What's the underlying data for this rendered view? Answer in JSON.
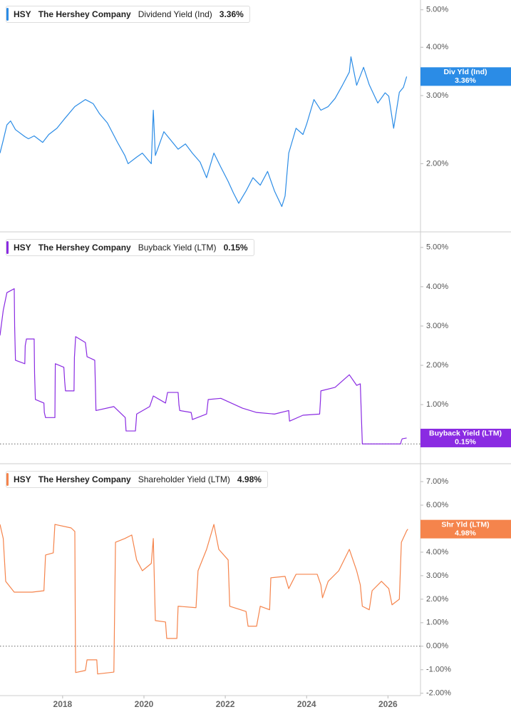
{
  "chart_data": [
    {
      "type": "line",
      "ticker": "HSY",
      "company": "The Hershey Company",
      "log_scale": true,
      "ylim": [
        1.35,
        5.3
      ],
      "yticks": [
        {
          "value": 2,
          "label": "2.00%"
        },
        {
          "value": 3,
          "label": "3.00%"
        },
        {
          "value": 4,
          "label": "4.00%"
        },
        {
          "value": 5,
          "label": "5.00%"
        }
      ],
      "xlim": [
        2016.46,
        2026.8
      ],
      "series": [
        {
          "name": "Dividend Yield (Ind)",
          "color": "#2b8ce6",
          "x": [
            2016.46,
            2016.54,
            2016.63,
            2016.72,
            2016.84,
            2017.07,
            2017.16,
            2017.3,
            2017.51,
            2017.66,
            2017.86,
            2018.03,
            2018.3,
            2018.56,
            2018.75,
            2018.91,
            2019.1,
            2019.35,
            2019.53,
            2019.61,
            2019.82,
            2019.96,
            2020.18,
            2020.23,
            2020.28,
            2020.49,
            2020.66,
            2020.84,
            2021.02,
            2021.19,
            2021.38,
            2021.54,
            2021.72,
            2021.89,
            2022.07,
            2022.2,
            2022.33,
            2022.51,
            2022.68,
            2022.86,
            2023.04,
            2023.21,
            2023.39,
            2023.47,
            2023.56,
            2023.74,
            2023.91,
            2024.0,
            2024.18,
            2024.35,
            2024.53,
            2024.7,
            2024.88,
            2025.05,
            2025.09,
            2025.23,
            2025.4,
            2025.54,
            2025.75,
            2025.93,
            2026.02,
            2026.14,
            2026.28,
            2026.38,
            2026.46
          ],
          "values": [
            2.13,
            2.3,
            2.52,
            2.58,
            2.45,
            2.35,
            2.32,
            2.36,
            2.27,
            2.38,
            2.47,
            2.6,
            2.81,
            2.93,
            2.86,
            2.69,
            2.55,
            2.27,
            2.1,
            2.0,
            2.08,
            2.13,
            2.0,
            2.75,
            2.1,
            2.42,
            2.3,
            2.18,
            2.25,
            2.13,
            2.02,
            1.84,
            2.13,
            1.96,
            1.8,
            1.68,
            1.58,
            1.7,
            1.84,
            1.76,
            1.91,
            1.7,
            1.55,
            1.65,
            2.13,
            2.47,
            2.38,
            2.53,
            2.93,
            2.75,
            2.81,
            2.95,
            3.19,
            3.45,
            3.78,
            3.19,
            3.55,
            3.2,
            2.87,
            3.05,
            2.99,
            2.47,
            3.06,
            3.15,
            3.36
          ]
        }
      ],
      "badge": {
        "label": "Div Yld (Ind)",
        "value": 3.36,
        "value_label": "3.36%"
      }
    },
    {
      "type": "line",
      "ticker": "HSY",
      "company": "The Hershey Company",
      "log_scale": false,
      "ylim": [
        -0.45,
        5.36
      ],
      "yticks": [
        {
          "value": 1,
          "label": "1.00%"
        },
        {
          "value": 2,
          "label": "2.00%"
        },
        {
          "value": 3,
          "label": "3.00%"
        },
        {
          "value": 4,
          "label": "4.00%"
        },
        {
          "value": 5,
          "label": "5.00%"
        }
      ],
      "reference_line": 0,
      "xlim": [
        2016.46,
        2026.8
      ],
      "series": [
        {
          "name": "Buyback Yield (LTM)",
          "color": "#8a2be2",
          "x": [
            2016.46,
            2016.54,
            2016.63,
            2016.81,
            2016.82,
            2016.84,
            2017.07,
            2017.08,
            2017.11,
            2017.3,
            2017.31,
            2017.33,
            2017.54,
            2017.55,
            2017.58,
            2017.81,
            2017.82,
            2018.03,
            2018.05,
            2018.07,
            2018.28,
            2018.29,
            2018.32,
            2018.56,
            2018.6,
            2018.79,
            2018.81,
            2018.82,
            2019.26,
            2019.54,
            2019.55,
            2019.56,
            2019.79,
            2019.81,
            2019.82,
            2020.14,
            2020.23,
            2020.53,
            2020.58,
            2020.84,
            2020.86,
            2020.88,
            2021.16,
            2021.18,
            2021.19,
            2021.54,
            2021.58,
            2021.89,
            2022.42,
            2022.77,
            2023.21,
            2023.56,
            2023.57,
            2023.58,
            2023.91,
            2024.32,
            2024.34,
            2024.35,
            2024.7,
            2025.05,
            2025.23,
            2025.32,
            2025.35,
            2025.37,
            2025.93,
            2026.31,
            2026.33,
            2026.35,
            2026.46
          ],
          "values": [
            2.76,
            3.4,
            3.85,
            3.95,
            3.0,
            2.13,
            2.04,
            2.5,
            2.67,
            2.67,
            1.8,
            1.13,
            1.04,
            0.8,
            0.67,
            0.67,
            2.04,
            1.95,
            1.6,
            1.35,
            1.35,
            2.2,
            2.73,
            2.58,
            2.22,
            2.13,
            1.3,
            0.85,
            0.95,
            0.67,
            0.5,
            0.33,
            0.33,
            0.6,
            0.76,
            0.95,
            1.22,
            1.04,
            1.31,
            1.31,
            1.0,
            0.85,
            0.8,
            0.7,
            0.62,
            0.76,
            1.13,
            1.16,
            0.91,
            0.8,
            0.76,
            0.85,
            0.7,
            0.58,
            0.73,
            0.76,
            1.1,
            1.35,
            1.44,
            1.76,
            1.49,
            1.53,
            0.6,
            0.0,
            0.0,
            0.0,
            0.08,
            0.13,
            0.15
          ]
        }
      ],
      "badge": {
        "label": "Buyback Yield (LTM)",
        "value": 0.15,
        "value_label": "0.15%"
      }
    },
    {
      "type": "line",
      "ticker": "HSY",
      "company": "The Hershey Company",
      "log_scale": false,
      "ylim": [
        -2.1,
        7.7
      ],
      "yticks": [
        {
          "value": -2,
          "label": "-2.00%"
        },
        {
          "value": -1,
          "label": "-1.00%"
        },
        {
          "value": 0,
          "label": "0.00%"
        },
        {
          "value": 1,
          "label": "1.00%"
        },
        {
          "value": 2,
          "label": "2.00%"
        },
        {
          "value": 3,
          "label": "3.00%"
        },
        {
          "value": 4,
          "label": "4.00%"
        },
        {
          "value": 5,
          "label": "5.00%"
        },
        {
          "value": 6,
          "label": "6.00%"
        },
        {
          "value": 7,
          "label": "7.00%"
        }
      ],
      "reference_line": 0,
      "xlim": [
        2016.46,
        2026.8
      ],
      "xticks": [
        2018,
        2020,
        2022,
        2024,
        2026
      ],
      "series": [
        {
          "name": "Shareholder Yield (LTM)",
          "color": "#f5844c",
          "x": [
            2016.46,
            2016.54,
            2016.6,
            2016.81,
            2017.25,
            2017.54,
            2017.58,
            2017.77,
            2017.81,
            2018.21,
            2018.3,
            2018.31,
            2018.32,
            2018.56,
            2018.6,
            2018.84,
            2018.86,
            2019.26,
            2019.3,
            2019.53,
            2019.7,
            2019.82,
            2019.96,
            2020.18,
            2020.23,
            2020.28,
            2020.53,
            2020.56,
            2020.81,
            2020.84,
            2021.28,
            2021.33,
            2021.54,
            2021.72,
            2021.84,
            2022.07,
            2022.11,
            2022.51,
            2022.56,
            2022.77,
            2022.86,
            2023.09,
            2023.12,
            2023.47,
            2023.56,
            2023.74,
            2024.26,
            2024.35,
            2024.39,
            2024.53,
            2024.79,
            2025.05,
            2025.23,
            2025.32,
            2025.37,
            2025.54,
            2025.61,
            2025.84,
            2026.02,
            2026.1,
            2026.28,
            2026.33,
            2026.46,
            2026.49
          ],
          "values": [
            5.18,
            4.58,
            2.76,
            2.3,
            2.3,
            2.36,
            3.88,
            3.97,
            5.18,
            5.03,
            4.88,
            1.5,
            -1.12,
            -1.03,
            -0.58,
            -0.58,
            -1.18,
            -1.1,
            4.42,
            4.58,
            4.73,
            3.67,
            3.21,
            3.52,
            4.58,
            1.09,
            1.03,
            0.33,
            0.33,
            1.7,
            1.64,
            3.21,
            4.12,
            5.18,
            4.12,
            3.67,
            1.7,
            1.48,
            0.85,
            0.85,
            1.7,
            1.55,
            2.91,
            2.97,
            2.45,
            3.06,
            3.06,
            2.61,
            2.06,
            2.76,
            3.21,
            4.12,
            3.21,
            2.61,
            1.7,
            1.55,
            2.36,
            2.76,
            2.45,
            1.76,
            2.0,
            4.42,
            4.91,
            4.98
          ]
        }
      ],
      "badge": {
        "label": "Shr Yld (LTM)",
        "value": 4.98,
        "value_label": "4.98%"
      }
    }
  ]
}
